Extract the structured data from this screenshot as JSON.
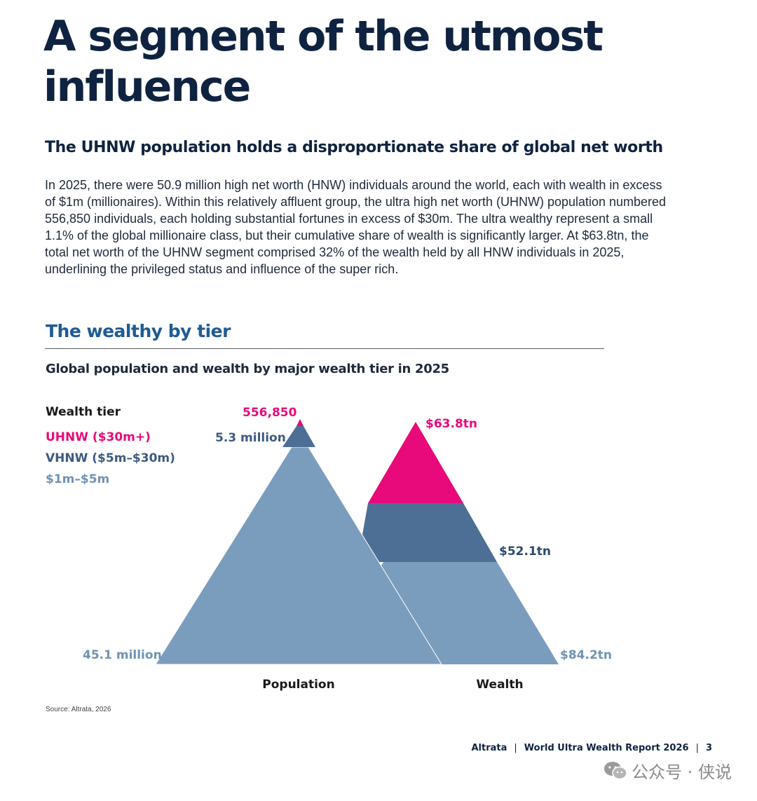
{
  "page": {
    "headline": "A segment of the utmost influence",
    "subheading": "The UHNW population holds a disproportionate share of global net worth",
    "body": "In 2025, there were 50.9 million high net worth (HNW) individuals around the world, each with wealth in excess of $1m (millionaires). Within this relatively affluent group, the ultra high net worth (UHNW) population numbered 556,850 individuals, each holding substantial fortunes in excess of $30m. The ultra wealthy represent a small 1.1% of the global millionaire class, but their cumulative share of wealth is significantly larger. At $63.8tn, the total net worth of the UHNW segment comprised 32% of the wealth held by all HNW individuals in 2025, underlining the privileged status and influence of the super rich.",
    "section_title": "The wealthy by tier",
    "source": "Source: Altrata, 2026"
  },
  "footer": {
    "brand": "Altrata",
    "sep1": "|",
    "report": "World Ultra Wealth Report 2026",
    "sep2": "|",
    "page_number": "3"
  },
  "watermark": {
    "text": "公众号 · 侠说",
    "icon": "wechat-icon"
  },
  "colors": {
    "uhnw": "#e8097a",
    "vhnw": "#4d6f96",
    "base": "#7b9dbd",
    "navy": "#0f2340",
    "section": "#1f5b94"
  },
  "chart_data": {
    "type": "stacked-pyramid",
    "title": "Global population and wealth by major wealth tier in 2025",
    "legend": {
      "title": "Wealth tier",
      "items": [
        {
          "name": "UHNW ($30m+)",
          "color": "#e8097a"
        },
        {
          "name": "VHNW ($5m–$30m)",
          "color": "#4d6f96"
        },
        {
          "name": "$1m–$5m",
          "color": "#7b9dbd"
        }
      ]
    },
    "categories": [
      "Population",
      "Wealth"
    ],
    "series": [
      {
        "name": "UHNW ($30m+)",
        "values": [
          556850,
          63.8
        ],
        "labels": [
          "556,850",
          "$63.8tn"
        ]
      },
      {
        "name": "VHNW ($5m–$30m)",
        "values": [
          5300000,
          52.1
        ],
        "labels": [
          "5.3 million",
          "$52.1tn"
        ]
      },
      {
        "name": "$1m–$5m",
        "values": [
          45100000,
          84.2
        ],
        "labels": [
          "45.1 million",
          "$84.2tn"
        ]
      }
    ]
  }
}
